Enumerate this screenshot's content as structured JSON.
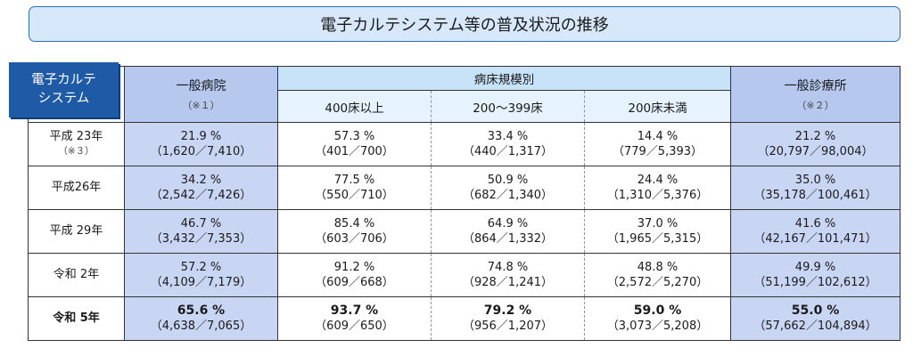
{
  "title": "電子カルテシステム等の普及状況の推移",
  "corner_label": [
    "電子カルテ",
    "システム"
  ],
  "headers": {
    "general_hospital": "一般病院",
    "general_hospital_note": "（※１）",
    "bed_scale_group": "病床規模別",
    "bed_400_plus": "400床以上",
    "bed_200_399": "200～399床",
    "bed_under_200": "200床未満",
    "general_clinic": "一般診療所",
    "general_clinic_note": "（※２）"
  },
  "rows": [
    {
      "label": "平成 23年",
      "note": "（※３）",
      "general_hospital": {
        "pct": "21.9 %",
        "frac": "（1,620／7,410）"
      },
      "bed_400_plus": {
        "pct": "57.3 %",
        "frac": "（401／700）"
      },
      "bed_200_399": {
        "pct": "33.4 %",
        "frac": "（440／1,317）"
      },
      "bed_under_200": {
        "pct": "14.4 %",
        "frac": "（779／5,393）"
      },
      "general_clinic": {
        "pct": "21.2 %",
        "frac": "（20,797／98,004）"
      }
    },
    {
      "label": "平成26年",
      "note": "",
      "general_hospital": {
        "pct": "34.2 %",
        "frac": "（2,542／7,426）"
      },
      "bed_400_plus": {
        "pct": "77.5 %",
        "frac": "（550／710）"
      },
      "bed_200_399": {
        "pct": "50.9 %",
        "frac": "（682／1,340）"
      },
      "bed_under_200": {
        "pct": "24.4 %",
        "frac": "（1,310／5,376）"
      },
      "general_clinic": {
        "pct": "35.0 %",
        "frac": "（35,178／100,461）"
      }
    },
    {
      "label": "平成 29年",
      "note": "",
      "general_hospital": {
        "pct": "46.7 %",
        "frac": "（3,432／7,353）"
      },
      "bed_400_plus": {
        "pct": "85.4 %",
        "frac": "（603／706）"
      },
      "bed_200_399": {
        "pct": "64.9 %",
        "frac": "（864／1,332）"
      },
      "bed_under_200": {
        "pct": "37.0 %",
        "frac": "（1,965／5,315）"
      },
      "general_clinic": {
        "pct": "41.6 %",
        "frac": "（42,167／101,471）"
      }
    },
    {
      "label": "令和 2年",
      "note": "",
      "general_hospital": {
        "pct": "57.2 %",
        "frac": "（4,109／7,179）"
      },
      "bed_400_plus": {
        "pct": "91.2 %",
        "frac": "（609／668）"
      },
      "bed_200_399": {
        "pct": "74.8 %",
        "frac": "（928／1,241）"
      },
      "bed_under_200": {
        "pct": "48.8 %",
        "frac": "（2,572／5,270）"
      },
      "general_clinic": {
        "pct": "49.9 %",
        "frac": "（51,199／102,612）"
      }
    },
    {
      "label": "令和 5年",
      "note": "",
      "general_hospital": {
        "pct": "65.6 %",
        "frac": "（4,638／7,065）"
      },
      "bed_400_plus": {
        "pct": "93.7 %",
        "frac": "（609／650）"
      },
      "bed_200_399": {
        "pct": "79.2 %",
        "frac": "（956／1,207）"
      },
      "bed_under_200": {
        "pct": "59.0 %",
        "frac": "（3,073／5,208）"
      },
      "general_clinic": {
        "pct": "55.0 %",
        "frac": "（57,662／104,894）"
      }
    }
  ],
  "colors": {
    "title_border": "#2e6fb5",
    "title_fill": "#d7e8fb",
    "corner_fill": "#1f5aa6",
    "highlight_column_fill": "#c9d6f3"
  }
}
